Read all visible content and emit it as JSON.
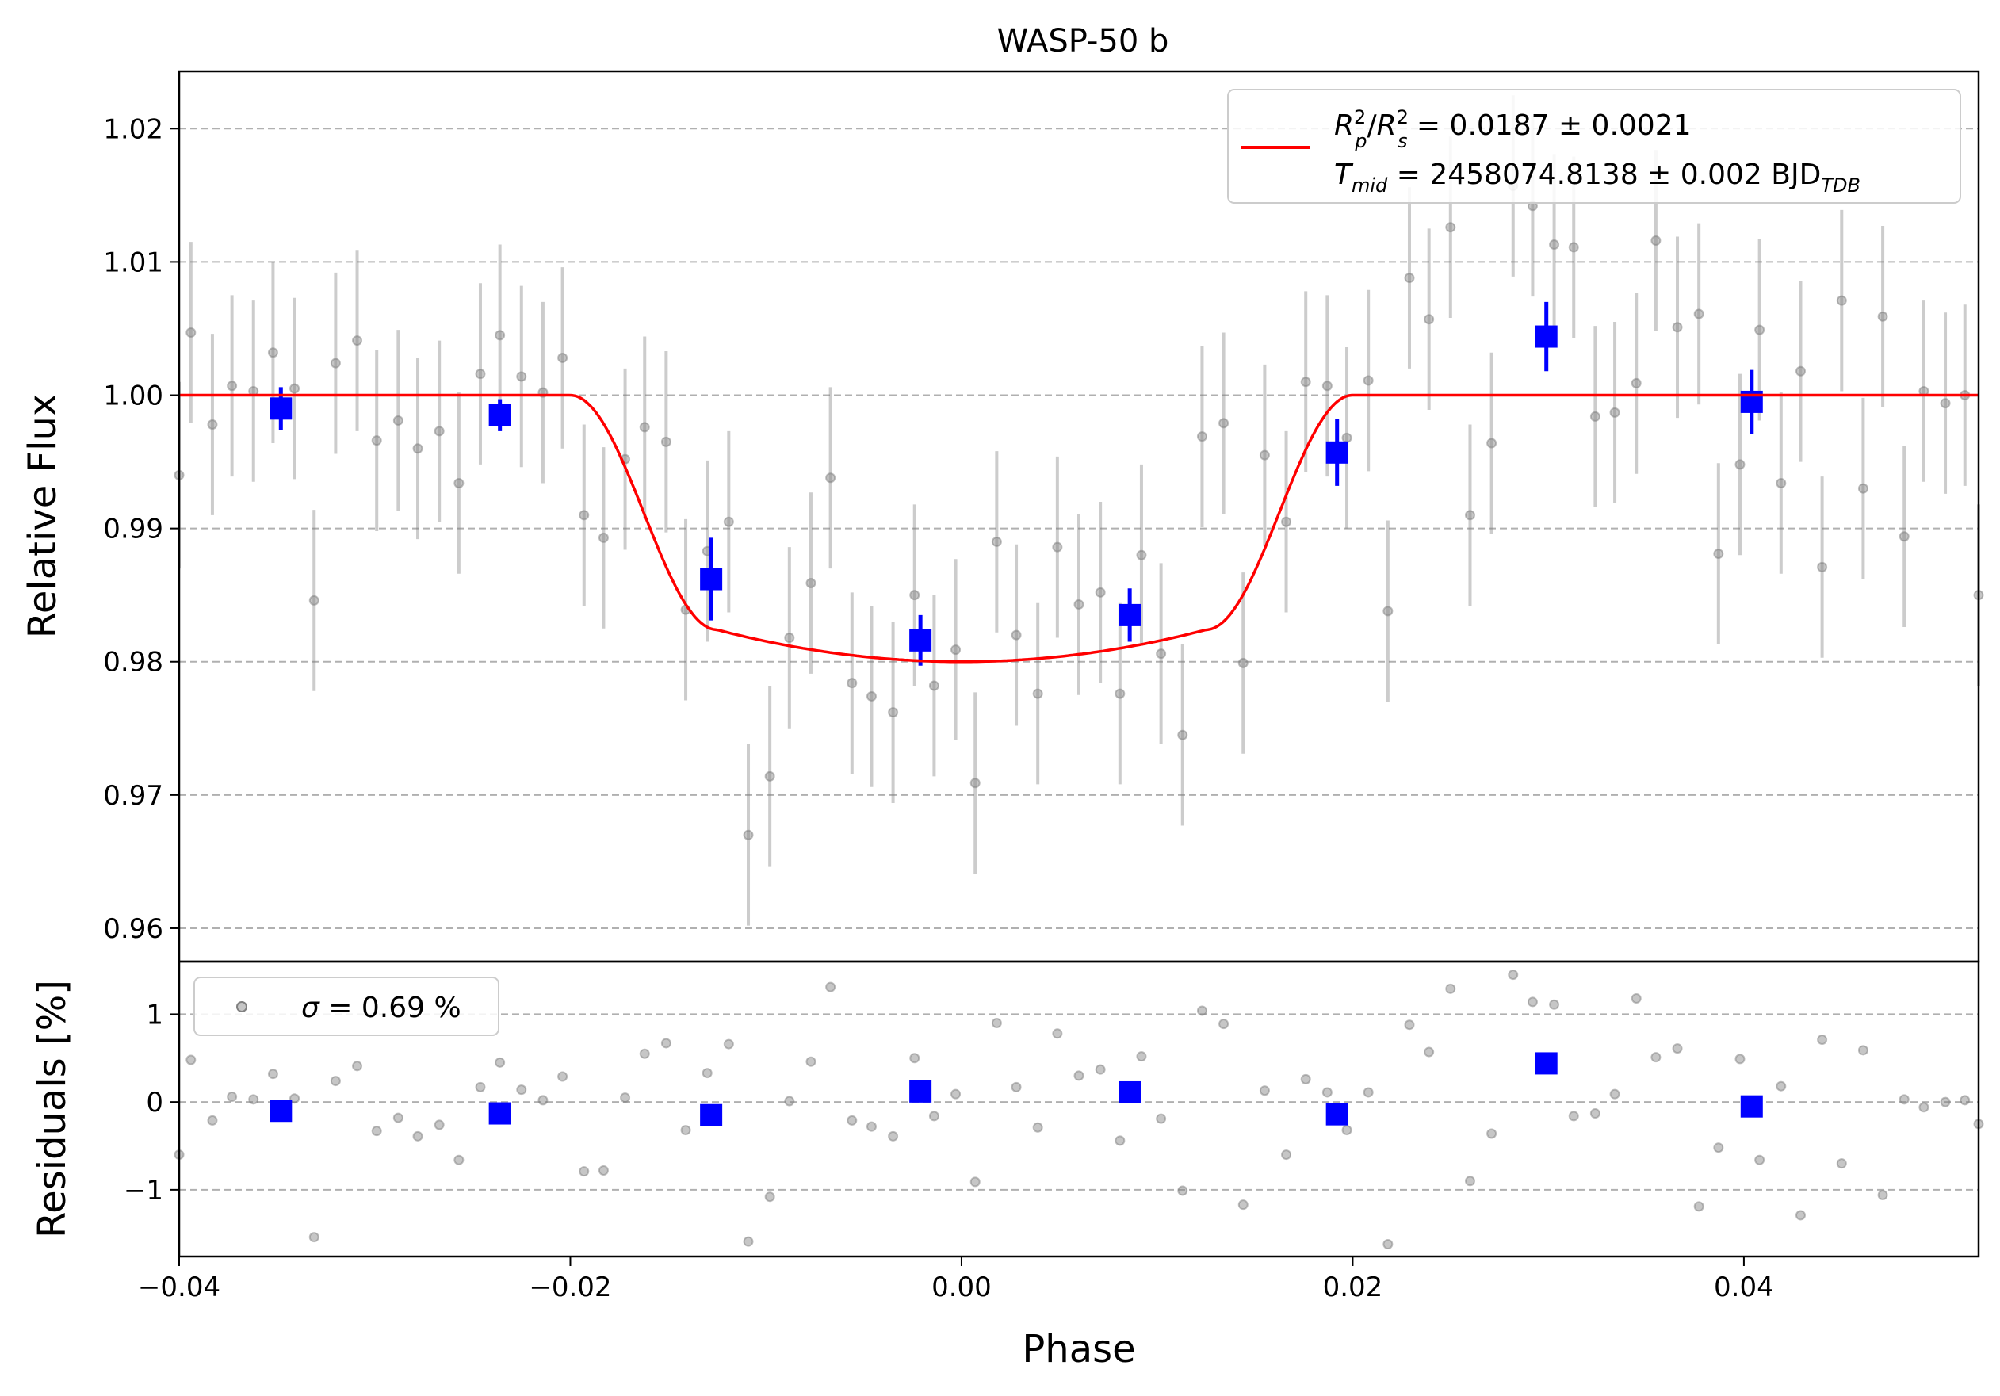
{
  "chart_data": {
    "type": "scatter",
    "title": "WASP-50 b",
    "xlabel": "Phase",
    "xlim": [
      -0.04,
      0.052
    ],
    "x_ticks": [
      -0.04,
      -0.02,
      0.0,
      0.02,
      0.04
    ],
    "x_tick_labels": [
      "−0.04",
      "−0.02",
      "0.00",
      "0.02",
      "0.04"
    ],
    "panels": {
      "main": {
        "ylabel": "Relative Flux",
        "ylim": [
          0.9575,
          1.0243
        ],
        "y_ticks": [
          0.96,
          0.97,
          0.98,
          0.99,
          1.0,
          1.01,
          1.02
        ],
        "y_tick_labels": [
          "0.96",
          "0.97",
          "0.98",
          "0.99",
          "1.00",
          "1.01",
          "1.02"
        ],
        "grid": "horizontal dashed",
        "legend": {
          "placement": "top-right",
          "line1": {
            "a": "R",
            "a_sup": "2",
            "a_sub": "p",
            "slash": "/",
            "b": "R",
            "b_sup": "2",
            "b_sub": "s",
            "value": " = 0.0187 ± 0.0021"
          },
          "line2": {
            "a": "T",
            "a_sub": "mid",
            "value": " = 2458074.8138 ± 0.002 BJD",
            "unit_sub": "TDB"
          }
        },
        "model": {
          "color": "#ff0000",
          "baseline": 1.0,
          "depth": 0.02,
          "t14": [
            -0.02,
            0.02
          ],
          "t23": [
            -0.0125,
            0.0125
          ]
        },
        "raw_points": {
          "color": "#808080",
          "x": [
            -0.04,
            -0.0394,
            -0.0383,
            -0.0373,
            -0.0362,
            -0.0352,
            -0.0341,
            -0.0331,
            -0.032,
            -0.0309,
            -0.0299,
            -0.0288,
            -0.0278,
            -0.0267,
            -0.0257,
            -0.0246,
            -0.0236,
            -0.0225,
            -0.0214,
            -0.0204,
            -0.0193,
            -0.0183,
            -0.0172,
            -0.0162,
            -0.0151,
            -0.0141,
            -0.013,
            -0.0119,
            -0.0109,
            -0.0098,
            -0.0088,
            -0.0077,
            -0.0067,
            -0.0056,
            -0.0046,
            -0.0035,
            -0.0024,
            -0.0014,
            -0.0003,
            0.0007,
            0.0018,
            0.0028,
            0.0039,
            0.0049,
            0.006,
            0.0071,
            0.0081,
            0.0092,
            0.0102,
            0.0113,
            0.0123,
            0.0134,
            0.0144,
            0.0155,
            0.0166,
            0.0176,
            0.0187,
            0.0197,
            0.0208,
            0.0218,
            0.0229,
            0.0239,
            0.025,
            0.026,
            0.0271,
            0.0282,
            0.0292,
            0.0303,
            0.0313,
            0.0324,
            0.0334,
            0.0345,
            0.0355,
            0.0366,
            0.0377,
            0.0387,
            0.0398,
            0.0408,
            0.0419,
            0.0429,
            0.044,
            0.045,
            0.0461,
            0.0471,
            0.0482,
            0.0492,
            0.0503,
            0.0513,
            0.052
          ],
          "y": [
            0.994,
            1.0047,
            0.9978,
            1.0007,
            1.0003,
            1.0032,
            1.0005,
            0.9846,
            1.0024,
            1.0041,
            0.9966,
            0.9981,
            0.996,
            0.9973,
            0.9934,
            1.0016,
            1.0045,
            1.0014,
            1.0002,
            1.0028,
            0.991,
            0.9893,
            0.9952,
            0.9976,
            0.9965,
            0.9839,
            0.9883,
            0.9905,
            0.967,
            0.9714,
            0.9818,
            0.9859,
            0.9938,
            0.9784,
            0.9774,
            0.9762,
            0.985,
            0.9782,
            0.9809,
            0.9709,
            0.989,
            0.982,
            0.9776,
            0.9886,
            0.9843,
            0.9852,
            0.9776,
            0.988,
            0.9806,
            0.9745,
            0.9969,
            0.9979,
            0.9799,
            0.9955,
            0.9905,
            1.001,
            1.0007,
            0.9968,
            1.0011,
            0.9838,
            1.0088,
            1.0057,
            1.0126,
            0.991,
            0.9964,
            1.0157,
            1.0142,
            1.0113,
            1.0111,
            0.9984,
            0.9987,
            1.0009,
            1.0116,
            1.0051,
            1.0061,
            0.9881,
            0.9948,
            1.0049,
            0.9934,
            1.0018,
            0.9871,
            1.0071,
            0.993,
            1.0059,
            0.9894,
            1.0003,
            0.9994,
            1.0,
            0.985
          ],
          "err": [
            0.007,
            0.0068,
            0.0068,
            0.0068,
            0.0068,
            0.0068,
            0.0068,
            0.0068,
            0.0068,
            0.0068,
            0.0068,
            0.0068,
            0.0068,
            0.0068,
            0.0068,
            0.0068,
            0.0068,
            0.0068,
            0.0068,
            0.0068,
            0.0068,
            0.0068,
            0.0068,
            0.0068,
            0.0068,
            0.0068,
            0.0068,
            0.0068,
            0.0068,
            0.0068,
            0.0068,
            0.0068,
            0.0068,
            0.0068,
            0.0068,
            0.0068,
            0.0068,
            0.0068,
            0.0068,
            0.0068,
            0.0068,
            0.0068,
            0.0068,
            0.0068,
            0.0068,
            0.0068,
            0.0068,
            0.0068,
            0.0068,
            0.0068,
            0.0068,
            0.0068,
            0.0068,
            0.0068,
            0.0068,
            0.0068,
            0.0068,
            0.0068,
            0.0068,
            0.0068,
            0.0068,
            0.0068,
            0.0068,
            0.0068,
            0.0068,
            0.0068,
            0.0068,
            0.0068,
            0.0068,
            0.0068,
            0.0068,
            0.0068,
            0.0068,
            0.0068,
            0.0068,
            0.0068,
            0.0068,
            0.0068,
            0.0068,
            0.0068,
            0.0068,
            0.0068,
            0.0068,
            0.0068,
            0.0068,
            0.0068,
            0.0068,
            0.0068,
            0.0068
          ]
        },
        "binned_points": {
          "color": "#0000ff",
          "x": [
            -0.0348,
            -0.0236,
            -0.0128,
            -0.0021,
            0.0086,
            0.0192,
            0.0299,
            0.0404
          ],
          "y": [
            0.999,
            0.9985,
            0.9862,
            0.9816,
            0.9835,
            0.9957,
            1.0044,
            0.9995
          ],
          "err": [
            0.0016,
            0.0012,
            0.0031,
            0.0019,
            0.002,
            0.0025,
            0.0026,
            0.0024
          ]
        }
      },
      "residuals": {
        "ylabel": "Residuals [%]",
        "ylim": [
          -1.76,
          1.6
        ],
        "y_ticks": [
          -1,
          0,
          1
        ],
        "y_tick_labels": [
          "−1",
          "0",
          "1"
        ],
        "grid": "horizontal dashed",
        "legend": {
          "placement": "top-left",
          "label_sym": "σ",
          "label_rest": " = 0.69 %"
        },
        "raw_points": {
          "color": "#808080",
          "x": [
            -0.04,
            -0.0394,
            -0.0383,
            -0.0373,
            -0.0362,
            -0.0352,
            -0.0341,
            -0.0331,
            -0.032,
            -0.0309,
            -0.0299,
            -0.0288,
            -0.0278,
            -0.0267,
            -0.0257,
            -0.0246,
            -0.0236,
            -0.0225,
            -0.0214,
            -0.0204,
            -0.0193,
            -0.0183,
            -0.0172,
            -0.0162,
            -0.0151,
            -0.0141,
            -0.013,
            -0.0119,
            -0.0109,
            -0.0098,
            -0.0088,
            -0.0077,
            -0.0067,
            -0.0056,
            -0.0046,
            -0.0035,
            -0.0024,
            -0.0014,
            -0.0003,
            0.0007,
            0.0018,
            0.0028,
            0.0039,
            0.0049,
            0.006,
            0.0071,
            0.0081,
            0.0092,
            0.0102,
            0.0113,
            0.0123,
            0.0134,
            0.0144,
            0.0155,
            0.0166,
            0.0176,
            0.0187,
            0.0197,
            0.0208,
            0.0218,
            0.0229,
            0.0239,
            0.025,
            0.026,
            0.0271,
            0.0282,
            0.0292,
            0.0303,
            0.0313,
            0.0324,
            0.0334,
            0.0345,
            0.0355,
            0.0366,
            0.0377,
            0.0387,
            0.0398,
            0.0408,
            0.0419,
            0.0429,
            0.044,
            0.045,
            0.0461,
            0.0471,
            0.0482,
            0.0492,
            0.0503,
            0.0513,
            0.052
          ],
          "y": [
            -0.6,
            0.48,
            -0.21,
            0.06,
            0.03,
            0.32,
            0.04,
            -1.54,
            0.24,
            0.41,
            -0.33,
            -0.18,
            -0.39,
            -0.26,
            -0.66,
            0.17,
            0.45,
            0.14,
            0.02,
            0.29,
            -0.79,
            -0.78,
            0.05,
            0.55,
            0.67,
            -0.32,
            0.33,
            0.66,
            -1.59,
            -1.08,
            0.01,
            0.46,
            1.31,
            -0.21,
            -0.28,
            -0.39,
            0.5,
            -0.16,
            0.09,
            -0.91,
            0.9,
            0.17,
            -0.29,
            0.78,
            0.3,
            0.37,
            -0.44,
            0.52,
            -0.19,
            -1.01,
            1.04,
            0.89,
            -1.17,
            0.13,
            -0.6,
            0.26,
            0.11,
            -0.32,
            0.11,
            -1.62,
            0.88,
            0.57,
            1.29,
            -0.9,
            -0.36,
            1.45,
            1.14,
            1.11,
            -0.16,
            -0.13,
            0.09,
            1.18,
            0.51,
            0.61,
            -1.19,
            -0.52,
            0.49,
            -0.66,
            0.18,
            -1.29,
            0.71,
            -0.7,
            0.59,
            -1.06,
            0.03,
            -0.06,
            0.0,
            0.02,
            -0.25
          ]
        },
        "binned_points": {
          "color": "#0000ff",
          "x": [
            -0.0348,
            -0.0236,
            -0.0128,
            -0.0021,
            0.0086,
            0.0192,
            0.0299,
            0.0404
          ],
          "y": [
            -0.1,
            -0.13,
            -0.15,
            0.12,
            0.11,
            -0.14,
            0.44,
            -0.05
          ]
        }
      }
    }
  }
}
